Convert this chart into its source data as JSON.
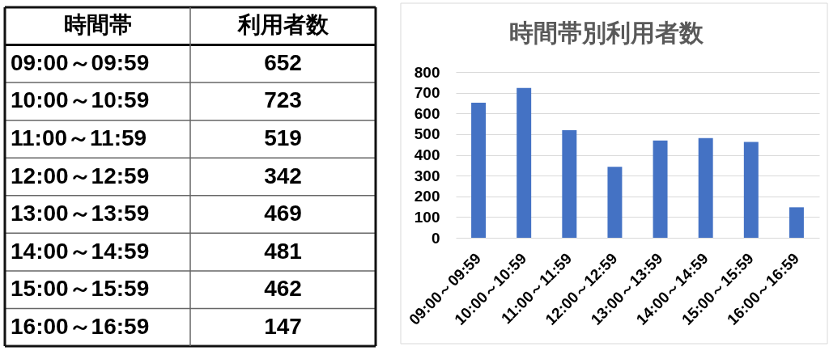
{
  "chart_data": [
    {
      "type": "other",
      "annotations": [
        "時間帯",
        "利用者数",
        "09:00～09:59",
        "652",
        "10:00～10:59",
        "723",
        "11:00～11:59",
        "519",
        "12:00～12:59",
        "342",
        "13:00～13:59",
        "469",
        "14:00～14:59",
        "481",
        "15:00～15:59",
        "462",
        "16:00～16:59",
        "147"
      ]
    },
    {
      "type": "bar",
      "title": "時間帯別利用者数",
      "categories": [
        "09:00～09:59",
        "10:00～10:59",
        "11:00～11:59",
        "12:00～12:59",
        "13:00～13:59",
        "14:00～14:59",
        "15:00～15:59",
        "16:00～16:59"
      ],
      "values": [
        652,
        723,
        519,
        342,
        469,
        481,
        462,
        147
      ],
      "color": "#4472c4",
      "ylim": [
        0,
        800
      ],
      "yticks": [
        0,
        100,
        200,
        300,
        400,
        500,
        600,
        700,
        800
      ],
      "grid": "y"
    }
  ]
}
